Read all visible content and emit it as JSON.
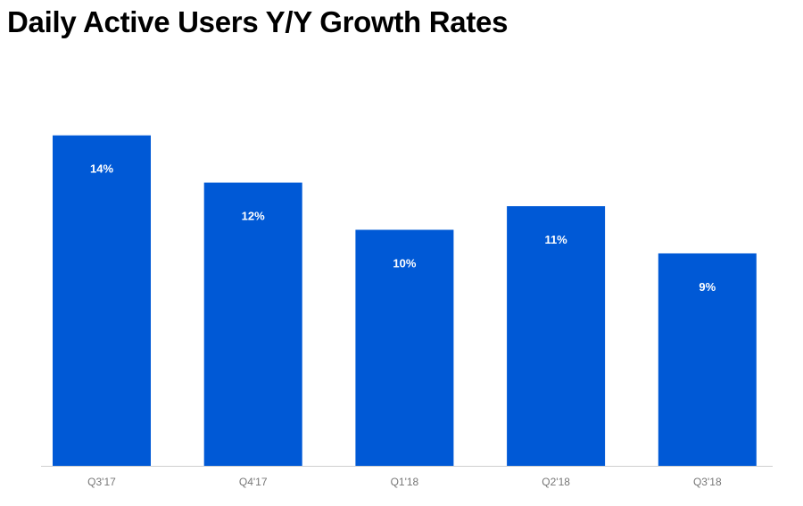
{
  "title": "Daily Active Users Y/Y Growth Rates",
  "colors": {
    "bar": "#0059d6",
    "axis": "#d0d0d0",
    "tick_label": "#777777",
    "data_label": "#ffffff"
  },
  "chart_data": {
    "type": "bar",
    "title": "Daily Active Users Y/Y Growth Rates",
    "categories": [
      "Q3'17",
      "Q4'17",
      "Q1'18",
      "Q2'18",
      "Q3'18"
    ],
    "values": [
      14,
      12,
      10,
      11,
      9
    ],
    "data_labels": [
      "14%",
      "12%",
      "10%",
      "11%",
      "9%"
    ],
    "unit": "%",
    "xlabel": "",
    "ylabel": "",
    "ylim": [
      0,
      17
    ],
    "grid": false,
    "legend": "none"
  }
}
